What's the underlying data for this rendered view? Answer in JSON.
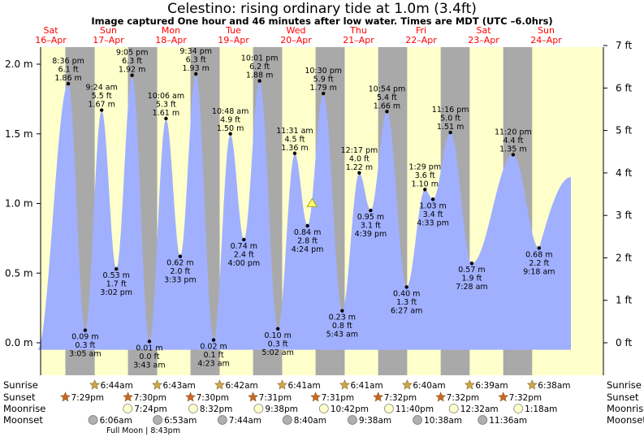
{
  "title": "Celestino: rising  ordinary tide at 1.0m (3.4ft)",
  "subtitle": "Image captured One hour and 46 minutes after low water. Times are MDT (UTC –6.0hrs)",
  "colors": {
    "day_background": "#ffffcc",
    "night_band": "#a9a9a9",
    "tide_fill": "#a0b0ff",
    "day_label": "#ff0000",
    "sun_star": "#ccaa44",
    "sunset_star": "#cc6622",
    "moonrise": "#ffffcc",
    "moonset": "#b0b0b0",
    "marker": "#ffff66"
  },
  "days": [
    {
      "weekday": "Sat",
      "date": "16–Apr"
    },
    {
      "weekday": "Sun",
      "date": "17–Apr"
    },
    {
      "weekday": "Mon",
      "date": "18–Apr"
    },
    {
      "weekday": "Tue",
      "date": "19–Apr"
    },
    {
      "weekday": "Wed",
      "date": "20–Apr"
    },
    {
      "weekday": "Thu",
      "date": "21–Apr"
    },
    {
      "weekday": "Fri",
      "date": "22–Apr"
    },
    {
      "weekday": "Sat",
      "date": "23–Apr"
    },
    {
      "weekday": "Sun",
      "date": "24–Apr"
    }
  ],
  "chart_data": {
    "type": "area",
    "xlabel": "",
    "ylabel_left": "m",
    "ylabel_right": "ft",
    "x_range": [
      "16-Apr 00:00",
      "24-Apr 24:00"
    ],
    "ylim_m": [
      -0.15,
      2.1
    ],
    "left_ticks": [
      {
        "value": 0.0,
        "label": "0.0 m"
      },
      {
        "value": 0.5,
        "label": "0.5 m"
      },
      {
        "value": 1.0,
        "label": "1.0 m"
      },
      {
        "value": 1.5,
        "label": "1.5 m"
      },
      {
        "value": 2.0,
        "label": "2.0 m"
      }
    ],
    "right_ticks": [
      {
        "value": 0,
        "label": "0 ft"
      },
      {
        "value": 1,
        "label": "1 ft"
      },
      {
        "value": 2,
        "label": "2 ft"
      },
      {
        "value": 3,
        "label": "3 ft"
      },
      {
        "value": 4,
        "label": "4 ft"
      },
      {
        "value": 5,
        "label": "5 ft"
      },
      {
        "value": 6,
        "label": "6 ft"
      },
      {
        "value": 7,
        "label": "7 ft"
      }
    ],
    "tides": [
      {
        "day": 0,
        "time": "20:36",
        "m": 1.86,
        "label_time": "8:36 pm",
        "label_ft": "6.1 ft",
        "label_m": "1.86 m",
        "kind": "high"
      },
      {
        "day": 1,
        "time": "03:05",
        "m": 0.09,
        "label_time": "3:05 am",
        "label_ft": "0.3 ft",
        "label_m": "0.09 m",
        "kind": "low"
      },
      {
        "day": 1,
        "time": "09:24",
        "m": 1.67,
        "label_time": "9:24 am",
        "label_ft": "5.5 ft",
        "label_m": "1.67 m",
        "kind": "high"
      },
      {
        "day": 1,
        "time": "15:02",
        "m": 0.53,
        "label_time": "3:02 pm",
        "label_ft": "1.7 ft",
        "label_m": "0.53 m",
        "kind": "low"
      },
      {
        "day": 1,
        "time": "21:05",
        "m": 1.92,
        "label_time": "9:05 pm",
        "label_ft": "6.3 ft",
        "label_m": "1.92 m",
        "kind": "high"
      },
      {
        "day": 2,
        "time": "03:43",
        "m": 0.01,
        "label_time": "3:43 am",
        "label_ft": "0.0 ft",
        "label_m": "0.01 m",
        "kind": "low"
      },
      {
        "day": 2,
        "time": "10:06",
        "m": 1.61,
        "label_time": "10:06 am",
        "label_ft": "5.3 ft",
        "label_m": "1.61 m",
        "kind": "high"
      },
      {
        "day": 2,
        "time": "15:33",
        "m": 0.62,
        "label_time": "3:33 pm",
        "label_ft": "2.0 ft",
        "label_m": "0.62 m",
        "kind": "low"
      },
      {
        "day": 2,
        "time": "21:34",
        "m": 1.93,
        "label_time": "9:34 pm",
        "label_ft": "6.3 ft",
        "label_m": "1.93 m",
        "kind": "high"
      },
      {
        "day": 3,
        "time": "04:23",
        "m": 0.02,
        "label_time": "4:23 am",
        "label_ft": "0.1 ft",
        "label_m": "0.02 m",
        "kind": "low"
      },
      {
        "day": 3,
        "time": "10:48",
        "m": 1.5,
        "label_time": "10:48 am",
        "label_ft": "4.9 ft",
        "label_m": "1.50 m",
        "kind": "high"
      },
      {
        "day": 3,
        "time": "16:00",
        "m": 0.74,
        "label_time": "4:00 pm",
        "label_ft": "2.4 ft",
        "label_m": "0.74 m",
        "kind": "low"
      },
      {
        "day": 3,
        "time": "22:01",
        "m": 1.88,
        "label_time": "10:01 pm",
        "label_ft": "6.2 ft",
        "label_m": "1.88 m",
        "kind": "high"
      },
      {
        "day": 4,
        "time": "05:02",
        "m": 0.1,
        "label_time": "5:02 am",
        "label_ft": "0.3 ft",
        "label_m": "0.10 m",
        "kind": "low"
      },
      {
        "day": 4,
        "time": "11:31",
        "m": 1.36,
        "label_time": "11:31 am",
        "label_ft": "4.5 ft",
        "label_m": "1.36 m",
        "kind": "high"
      },
      {
        "day": 4,
        "time": "16:24",
        "m": 0.84,
        "label_time": "4:24 pm",
        "label_ft": "2.8 ft",
        "label_m": "0.84 m",
        "kind": "low"
      },
      {
        "day": 4,
        "time": "22:30",
        "m": 1.79,
        "label_time": "10:30 pm",
        "label_ft": "5.9 ft",
        "label_m": "1.79 m",
        "kind": "high"
      },
      {
        "day": 5,
        "time": "05:43",
        "m": 0.23,
        "label_time": "5:43 am",
        "label_ft": "0.8 ft",
        "label_m": "0.23 m",
        "kind": "low"
      },
      {
        "day": 5,
        "time": "12:17",
        "m": 1.22,
        "label_time": "12:17 pm",
        "label_ft": "4.0 ft",
        "label_m": "1.22 m",
        "kind": "high"
      },
      {
        "day": 5,
        "time": "16:39",
        "m": 0.95,
        "label_time": "4:39 pm",
        "label_ft": "3.1 ft",
        "label_m": "0.95 m",
        "kind": "low"
      },
      {
        "day": 5,
        "time": "22:54",
        "m": 1.66,
        "label_time": "10:54 pm",
        "label_ft": "5.4 ft",
        "label_m": "1.66 m",
        "kind": "high"
      },
      {
        "day": 6,
        "time": "06:27",
        "m": 0.4,
        "label_time": "6:27 am",
        "label_ft": "1.3 ft",
        "label_m": "0.40 m",
        "kind": "low"
      },
      {
        "day": 6,
        "time": "13:29",
        "m": 1.1,
        "label_time": "1:29 pm",
        "label_ft": "3.6 ft",
        "label_m": "1.10 m",
        "kind": "high"
      },
      {
        "day": 6,
        "time": "16:33",
        "m": 1.03,
        "label_time": "4:33 pm",
        "label_ft": "3.4 ft",
        "label_m": "1.03 m",
        "kind": "low"
      },
      {
        "day": 6,
        "time": "23:16",
        "m": 1.51,
        "label_time": "11:16 pm",
        "label_ft": "5.0 ft",
        "label_m": "1.51 m",
        "kind": "high"
      },
      {
        "day": 7,
        "time": "07:28",
        "m": 0.57,
        "label_time": "7:28 am",
        "label_ft": "1.9 ft",
        "label_m": "0.57 m",
        "kind": "low"
      },
      {
        "day": 7,
        "time": "23:20",
        "m": 1.35,
        "label_time": "11:20 pm",
        "label_ft": "4.4 ft",
        "label_m": "1.35 m",
        "kind": "high"
      },
      {
        "day": 8,
        "time": "09:18",
        "m": 0.68,
        "label_time": "9:18 am",
        "label_ft": "2.2 ft",
        "label_m": "0.68 m",
        "kind": "low"
      }
    ],
    "current_marker": {
      "day": 4,
      "time": "18:10",
      "m": 1.0
    },
    "sun": {
      "sunrise": [
        {
          "day": 1,
          "time": "06:44",
          "label": "6:44am"
        },
        {
          "day": 2,
          "time": "06:43",
          "label": "6:43am"
        },
        {
          "day": 3,
          "time": "06:42",
          "label": "6:42am"
        },
        {
          "day": 4,
          "time": "06:41",
          "label": "6:41am"
        },
        {
          "day": 5,
          "time": "06:41",
          "label": "6:41am"
        },
        {
          "day": 6,
          "time": "06:40",
          "label": "6:40am"
        },
        {
          "day": 7,
          "time": "06:39",
          "label": "6:39am"
        },
        {
          "day": 8,
          "time": "06:38",
          "label": "6:38am"
        }
      ],
      "sunset": [
        {
          "day": 0,
          "time": "19:29",
          "label": "7:29pm"
        },
        {
          "day": 1,
          "time": "19:30",
          "label": "7:30pm"
        },
        {
          "day": 2,
          "time": "19:30",
          "label": "7:30pm"
        },
        {
          "day": 3,
          "time": "19:31",
          "label": "7:31pm"
        },
        {
          "day": 4,
          "time": "19:31",
          "label": "7:31pm"
        },
        {
          "day": 5,
          "time": "19:32",
          "label": "7:32pm"
        },
        {
          "day": 6,
          "time": "19:32",
          "label": "7:32pm"
        },
        {
          "day": 7,
          "time": "19:32",
          "label": "7:32pm"
        }
      ]
    },
    "moon": {
      "moonrise": [
        {
          "day": 1,
          "time": "19:24",
          "label": "7:24pm"
        },
        {
          "day": 2,
          "time": "20:32",
          "label": "8:32pm"
        },
        {
          "day": 3,
          "time": "21:38",
          "label": "9:38pm"
        },
        {
          "day": 4,
          "time": "22:42",
          "label": "10:42pm"
        },
        {
          "day": 5,
          "time": "23:40",
          "label": "11:40pm"
        },
        {
          "day": 7,
          "time": "00:32",
          "label": "12:32am"
        },
        {
          "day": 8,
          "time": "01:18",
          "label": "1:18am"
        }
      ],
      "moonset": [
        {
          "day": 1,
          "time": "06:06",
          "label": "6:06am"
        },
        {
          "day": 2,
          "time": "06:53",
          "label": "6:53am"
        },
        {
          "day": 3,
          "time": "07:44",
          "label": "7:44am"
        },
        {
          "day": 4,
          "time": "08:40",
          "label": "8:40am"
        },
        {
          "day": 5,
          "time": "09:38",
          "label": "9:38am"
        },
        {
          "day": 6,
          "time": "10:38",
          "label": "10:38am"
        },
        {
          "day": 7,
          "time": "11:36",
          "label": "11:36am"
        }
      ]
    },
    "row_labels": {
      "sunrise": "Sunrise",
      "sunset": "Sunset",
      "moonrise": "Moonrise",
      "moonset": "Moonset"
    },
    "full_moon_note": "Full Moon | 8:43pm"
  }
}
